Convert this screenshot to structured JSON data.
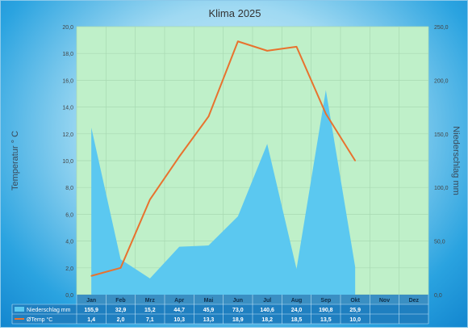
{
  "chart_data": {
    "type": "area+line",
    "title": "Klima 2025",
    "categories": [
      "Jan",
      "Feb",
      "Mrz",
      "Apr",
      "Mai",
      "Jun",
      "Jul",
      "Aug",
      "Sep",
      "Okt",
      "Nov",
      "Dez"
    ],
    "y_left": {
      "label": "Temperatur ° C",
      "range": [
        0,
        20
      ],
      "ticks": [
        "0,0",
        "2,0",
        "4,0",
        "6,0",
        "8,0",
        "10,0",
        "12,0",
        "14,0",
        "16,0",
        "18,0",
        "20,0"
      ]
    },
    "y_right": {
      "label": "Niederschlag mm",
      "range": [
        0,
        250
      ],
      "ticks": [
        "0,0",
        "50,0",
        "100,0",
        "150,0",
        "200,0",
        "250,0"
      ]
    },
    "series": [
      {
        "name": "Niederschlag mm",
        "type": "area",
        "axis": "right",
        "color": "#5bc8f0",
        "values": [
          155.9,
          32.9,
          15.2,
          44.7,
          45.9,
          73.0,
          140.6,
          24.0,
          190.8,
          25.9,
          null,
          null
        ],
        "labels": [
          "155,9",
          "32,9",
          "15,2",
          "44,7",
          "45,9",
          "73,0",
          "140,6",
          "24,0",
          "190,8",
          "25,9",
          "",
          ""
        ]
      },
      {
        "name": "ØTemp °C",
        "type": "line",
        "axis": "left",
        "color": "#e8722e",
        "values": [
          1.4,
          2.0,
          7.1,
          10.3,
          13.3,
          18.9,
          18.2,
          18.5,
          13.5,
          10.0,
          null,
          null
        ],
        "labels": [
          "1,4",
          "2,0",
          "7,1",
          "10,3",
          "13,3",
          "18,9",
          "18,2",
          "18,5",
          "13,5",
          "10,0",
          "",
          ""
        ]
      }
    ],
    "plot_background": "#bff0c9",
    "grid": true,
    "legend": "data-table"
  }
}
